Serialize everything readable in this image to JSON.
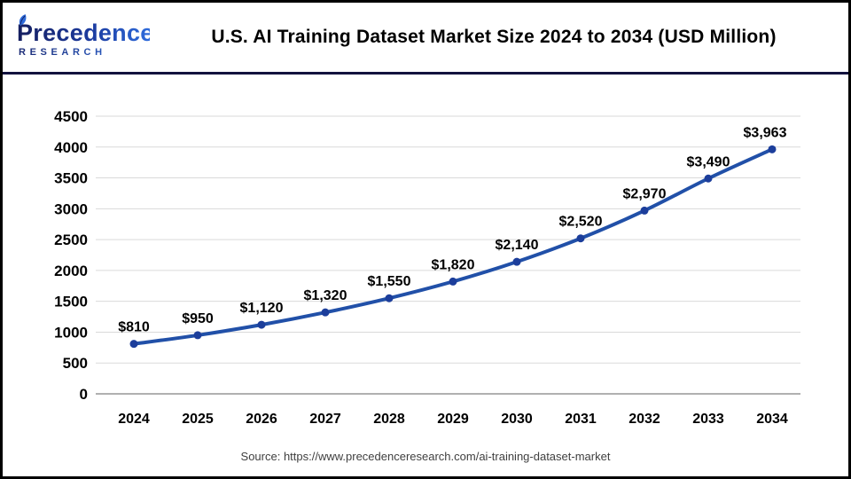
{
  "header": {
    "logo": {
      "line1": "Precedence",
      "line2": "RESEARCH",
      "color_dark": "#151E5F",
      "color_light": "#2E6BDB"
    },
    "title": "U.S. AI Training Dataset Market Size 2024 to 2034 (USD Million)",
    "divider_color": "#12123E"
  },
  "chart_data": {
    "type": "line",
    "title": "U.S. AI Training Dataset Market Size 2024 to 2034 (USD Million)",
    "x": [
      "2024",
      "2025",
      "2026",
      "2027",
      "2028",
      "2029",
      "2030",
      "2031",
      "2032",
      "2033",
      "2034"
    ],
    "values": [
      810,
      950,
      1120,
      1320,
      1550,
      1820,
      2140,
      2520,
      2970,
      3490,
      3963
    ],
    "data_labels": [
      "$810",
      "$950",
      "$1,120",
      "$1,320",
      "$1,550",
      "$1,820",
      "$2,140",
      "$2,520",
      "$2,970",
      "$3,490",
      "$3,963"
    ],
    "xlabel": "",
    "ylabel": "",
    "ylim": [
      0,
      4500
    ],
    "yticks": [
      0,
      500,
      1000,
      1500,
      2000,
      2500,
      3000,
      3500,
      4000,
      4500
    ],
    "grid": true,
    "legend": false,
    "colors": {
      "line": "#2150A8",
      "marker": "#1C3E9B",
      "gridline": "#DADADA",
      "axis_line": "#B0B0B0",
      "tick_label": "#000000",
      "data_label": "#000000"
    }
  },
  "footer": {
    "source": "Source: https://www.precedenceresearch.com/ai-training-dataset-market"
  }
}
